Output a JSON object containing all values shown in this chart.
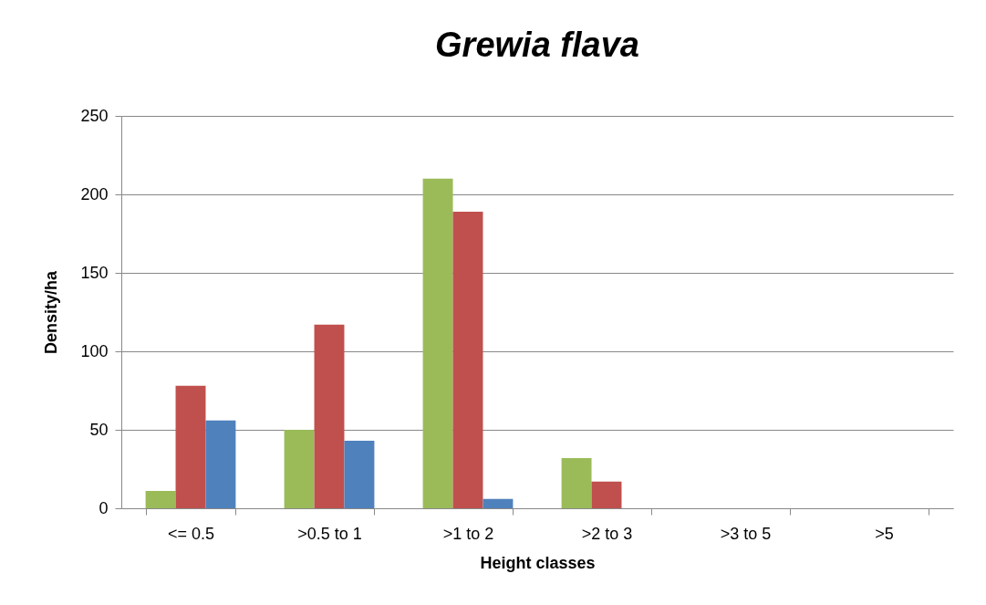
{
  "chart_data": {
    "type": "bar",
    "title": "Grewia flava",
    "xlabel": "Height classes",
    "ylabel": "Density/ha",
    "categories": [
      "<= 0.5",
      ">0.5 to 1",
      ">1 to 2",
      ">2 to 3",
      ">3 to 5",
      ">5"
    ],
    "series": [
      {
        "color": "#9bbb59",
        "values": [
          11,
          50,
          210,
          32,
          0,
          0
        ]
      },
      {
        "color": "#c0504d",
        "values": [
          78,
          117,
          189,
          17,
          0,
          0
        ]
      },
      {
        "color": "#4f81bd",
        "values": [
          56,
          43,
          6,
          0,
          0,
          0
        ]
      }
    ],
    "ylim": [
      0,
      250
    ],
    "yticks": [
      0,
      50,
      100,
      150,
      200,
      250
    ],
    "grid": "y"
  }
}
